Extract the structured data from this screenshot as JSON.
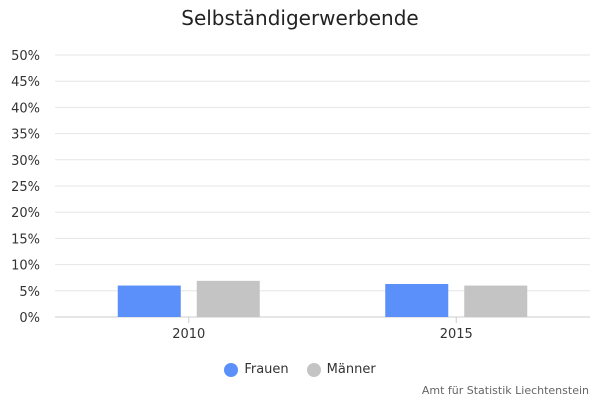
{
  "chart_data": {
    "type": "bar",
    "title": "Selbständigerwerbende",
    "categories": [
      "2010",
      "2015"
    ],
    "series": [
      {
        "name": "Frauen",
        "values": [
          6.0,
          6.3
        ],
        "color": "#5b8ff9"
      },
      {
        "name": "Männer",
        "values": [
          6.9,
          6.0
        ],
        "color": "#c4c4c4"
      }
    ],
    "ylim": [
      0,
      50
    ],
    "yticks": [
      0,
      5,
      10,
      15,
      20,
      25,
      30,
      35,
      40,
      45,
      50
    ],
    "ytick_suffix": "%",
    "grid": true,
    "legend_position": "bottom-center"
  },
  "credits": "Amt für Statistik Liechtenstein"
}
